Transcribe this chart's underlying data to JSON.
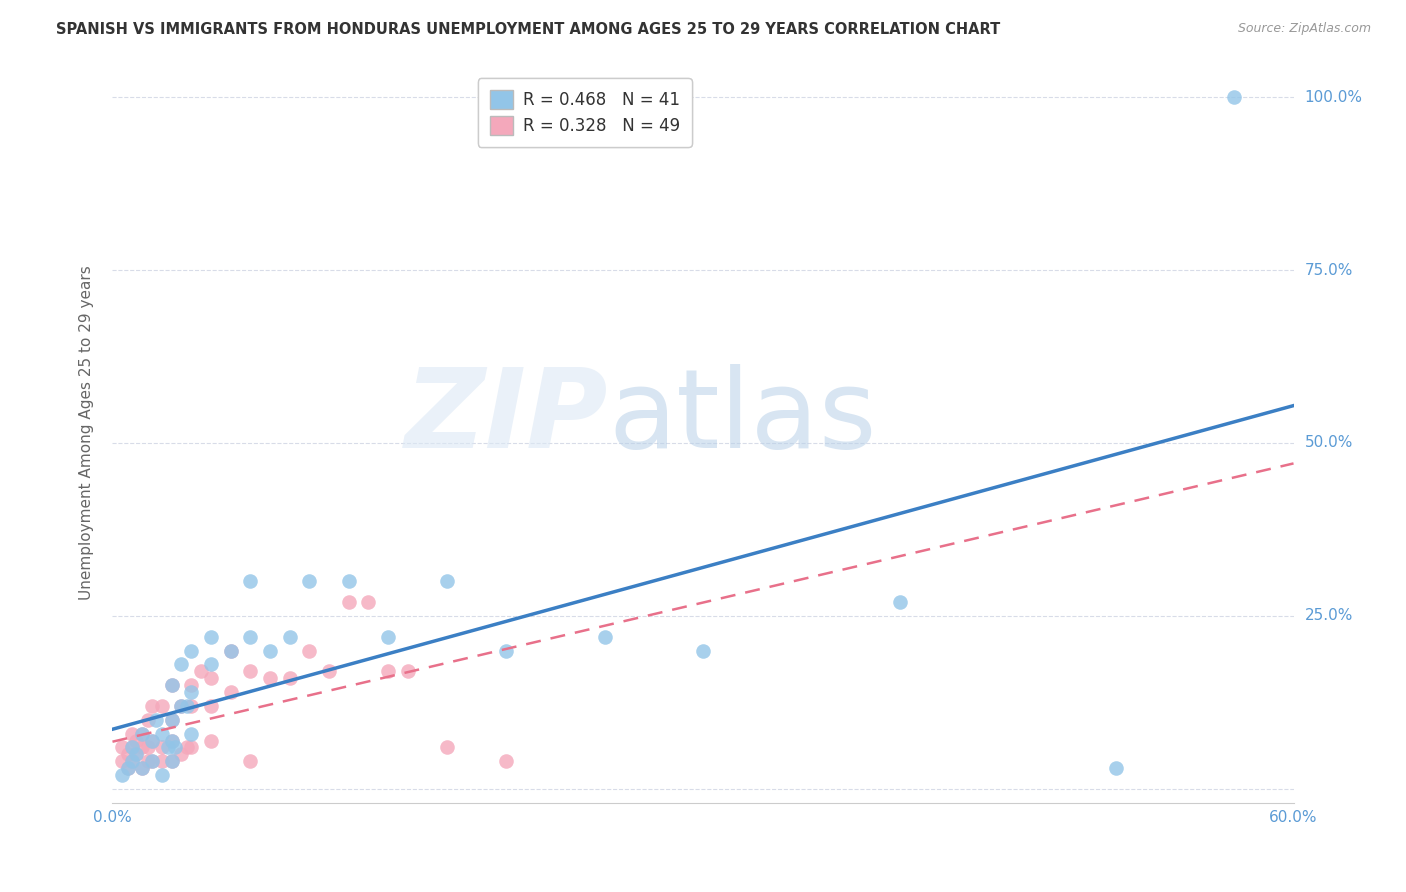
{
  "title": "SPANISH VS IMMIGRANTS FROM HONDURAS UNEMPLOYMENT AMONG AGES 25 TO 29 YEARS CORRELATION CHART",
  "source": "Source: ZipAtlas.com",
  "ylabel": "Unemployment Among Ages 25 to 29 years",
  "xlim": [
    0.0,
    0.6
  ],
  "ylim": [
    -0.02,
    1.05
  ],
  "ytick_positions": [
    0.0,
    0.25,
    0.5,
    0.75,
    1.0
  ],
  "ytick_labels": [
    "",
    "25.0%",
    "50.0%",
    "75.0%",
    "100.0%"
  ],
  "xtick_positions": [
    0.0,
    0.1,
    0.2,
    0.3,
    0.4,
    0.5,
    0.6
  ],
  "xtick_labels": [
    "0.0%",
    "",
    "",
    "",
    "",
    "",
    "60.0%"
  ],
  "spanish_R": 0.468,
  "spanish_N": 41,
  "honduras_R": 0.328,
  "honduras_N": 49,
  "spanish_color": "#92C5E8",
  "honduras_color": "#F4A8BB",
  "spanish_line_color": "#3B7FC4",
  "honduras_line_color": "#E8708A",
  "tick_label_color": "#5B9BD5",
  "background_color": "#FFFFFF",
  "grid_color": "#D8DCE8",
  "spanish_x": [
    0.005,
    0.008,
    0.01,
    0.01,
    0.012,
    0.015,
    0.015,
    0.02,
    0.02,
    0.022,
    0.025,
    0.025,
    0.028,
    0.03,
    0.03,
    0.03,
    0.03,
    0.032,
    0.035,
    0.035,
    0.038,
    0.04,
    0.04,
    0.04,
    0.05,
    0.05,
    0.06,
    0.07,
    0.07,
    0.08,
    0.09,
    0.1,
    0.12,
    0.14,
    0.17,
    0.2,
    0.25,
    0.3,
    0.4,
    0.51,
    0.57
  ],
  "spanish_y": [
    0.02,
    0.03,
    0.04,
    0.06,
    0.05,
    0.03,
    0.08,
    0.04,
    0.07,
    0.1,
    0.02,
    0.08,
    0.06,
    0.04,
    0.07,
    0.1,
    0.15,
    0.06,
    0.12,
    0.18,
    0.12,
    0.08,
    0.14,
    0.2,
    0.18,
    0.22,
    0.2,
    0.22,
    0.3,
    0.2,
    0.22,
    0.3,
    0.3,
    0.22,
    0.3,
    0.2,
    0.22,
    0.2,
    0.27,
    0.03,
    1.0
  ],
  "honduras_x": [
    0.005,
    0.005,
    0.008,
    0.008,
    0.01,
    0.01,
    0.01,
    0.012,
    0.012,
    0.015,
    0.015,
    0.015,
    0.018,
    0.018,
    0.018,
    0.02,
    0.02,
    0.02,
    0.025,
    0.025,
    0.025,
    0.03,
    0.03,
    0.03,
    0.03,
    0.035,
    0.035,
    0.038,
    0.04,
    0.04,
    0.04,
    0.045,
    0.05,
    0.05,
    0.05,
    0.06,
    0.06,
    0.07,
    0.07,
    0.08,
    0.09,
    0.1,
    0.11,
    0.12,
    0.13,
    0.14,
    0.15,
    0.17,
    0.2
  ],
  "honduras_y": [
    0.04,
    0.06,
    0.03,
    0.05,
    0.04,
    0.06,
    0.08,
    0.05,
    0.07,
    0.03,
    0.06,
    0.08,
    0.04,
    0.06,
    0.1,
    0.04,
    0.07,
    0.12,
    0.04,
    0.06,
    0.12,
    0.04,
    0.07,
    0.1,
    0.15,
    0.05,
    0.12,
    0.06,
    0.06,
    0.12,
    0.15,
    0.17,
    0.07,
    0.12,
    0.16,
    0.14,
    0.2,
    0.04,
    0.17,
    0.16,
    0.16,
    0.2,
    0.17,
    0.27,
    0.27,
    0.17,
    0.17,
    0.06,
    0.04
  ]
}
